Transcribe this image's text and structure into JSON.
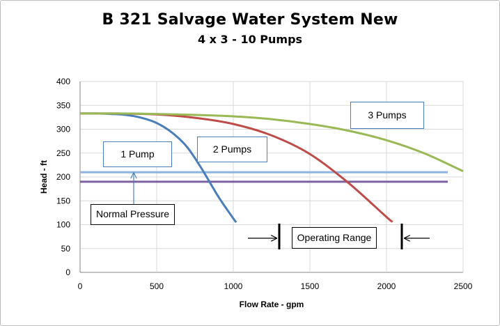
{
  "chart_data": {
    "type": "line",
    "title": "B 321 Salvage Water System New",
    "subtitle": "4 x 3 - 10 Pumps",
    "xlabel": "Flow Rate - gpm",
    "ylabel": "Head - ft",
    "xlim": [
      0,
      2500
    ],
    "ylim": [
      0,
      400
    ],
    "xticks": [
      "0",
      "500",
      "1000",
      "1500",
      "2000",
      "2500"
    ],
    "yticks": [
      "0",
      "50",
      "100",
      "150",
      "200",
      "250",
      "300",
      "350",
      "400"
    ],
    "grid": true,
    "series": [
      {
        "name": "1 Pump",
        "color": "#4a7ebb",
        "x": [
          0,
          100,
          200,
          300,
          400,
          500,
          600,
          700,
          800,
          900,
          1000,
          1020
        ],
        "y": [
          333,
          333,
          332,
          330,
          324,
          313,
          293,
          262,
          214,
          160,
          113,
          105
        ]
      },
      {
        "name": "2 Pumps",
        "color": "#be4b48",
        "x": [
          0,
          250,
          500,
          750,
          1000,
          1250,
          1500,
          1750,
          2000,
          2040
        ],
        "y": [
          333,
          333,
          331,
          324,
          311,
          287,
          248,
          188,
          116,
          106
        ]
      },
      {
        "name": "3 Pumps",
        "color": "#98b954",
        "x": [
          0,
          250,
          500,
          750,
          1000,
          1250,
          1500,
          1750,
          2000,
          2250,
          2500
        ],
        "y": [
          333,
          333,
          332,
          330,
          327,
          321,
          311,
          297,
          277,
          249,
          212
        ]
      },
      {
        "color": "#8eb4e3",
        "x": [
          0,
          2400
        ],
        "y": [
          210,
          210
        ]
      },
      {
        "color": "#7d60a0",
        "x": [
          0,
          2400
        ],
        "y": [
          190,
          190
        ]
      }
    ],
    "annotations": [
      {
        "text": "1 Pump",
        "style": "blue"
      },
      {
        "text": "2 Pumps",
        "style": "blue"
      },
      {
        "text": "3 Pumps",
        "style": "blue"
      },
      {
        "text": "Normal Pressure",
        "style": "black"
      },
      {
        "text": "Operating Range",
        "style": "black"
      }
    ],
    "operating_range_x": [
      1300,
      2100
    ],
    "pressure_arrow_x": 350
  }
}
